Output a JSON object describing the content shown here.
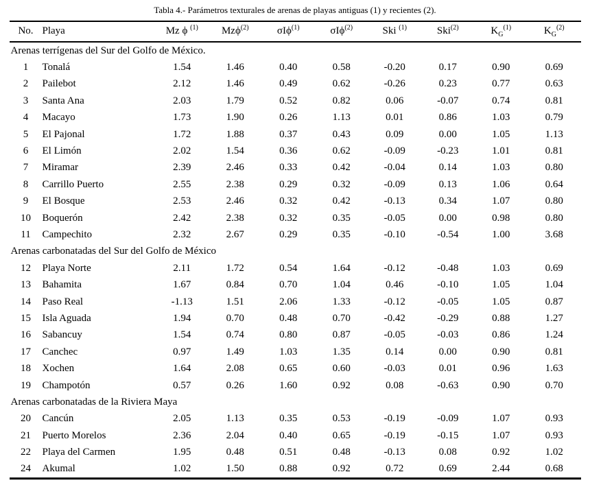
{
  "title": "Tabla 4.- Parámetros texturales de arenas de playas antiguas (1) y recientes (2).",
  "table": {
    "columns": [
      {
        "base": "No."
      },
      {
        "base": "Playa"
      },
      {
        "base": "Mz ϕ ",
        "sup": "(1)"
      },
      {
        "base": "Mzϕ",
        "sup": "(2)"
      },
      {
        "base": "σIϕ",
        "sup": "(1)"
      },
      {
        "base": "σIϕ",
        "sup": "(2)"
      },
      {
        "base": "Ski ",
        "sup": "(1)"
      },
      {
        "base": "Ski",
        "sup": "(2)"
      },
      {
        "base": "K",
        "sub": "G",
        "sup": "(1)"
      },
      {
        "base": "K",
        "sub": "G",
        "sup": "(2)"
      }
    ],
    "sections": [
      {
        "header": "Arenas terrígenas del Sur del Golfo de México.",
        "rows": [
          {
            "no": "1",
            "playa": "Tonalá",
            "values": [
              "1.54",
              "1.46",
              "0.40",
              "0.58",
              "-0.20",
              "0.17",
              "0.90",
              "0.69"
            ]
          },
          {
            "no": "2",
            "playa": "Pailebot",
            "values": [
              "2.12",
              "1.46",
              "0.49",
              "0.62",
              "-0.26",
              "0.23",
              "0.77",
              "0.63"
            ]
          },
          {
            "no": "3",
            "playa": "Santa Ana",
            "values": [
              "2.03",
              "1.79",
              "0.52",
              "0.82",
              "0.06",
              "-0.07",
              "0.74",
              "0.81"
            ]
          },
          {
            "no": "4",
            "playa": "Macayo",
            "values": [
              "1.73",
              "1.90",
              "0.26",
              "1.13",
              "0.01",
              "0.86",
              "1.03",
              "0.79"
            ]
          },
          {
            "no": "5",
            "playa": "El Pajonal",
            "values": [
              "1.72",
              "1.88",
              "0.37",
              "0.43",
              "0.09",
              "0.00",
              "1.05",
              "1.13"
            ]
          },
          {
            "no": "6",
            "playa": "El Limón",
            "values": [
              "2.02",
              "1.54",
              "0.36",
              "0.62",
              "-0.09",
              "-0.23",
              "1.01",
              "0.81"
            ]
          },
          {
            "no": "7",
            "playa": "Miramar",
            "values": [
              "2.39",
              "2.46",
              "0.33",
              "0.42",
              "-0.04",
              "0.14",
              "1.03",
              "0.80"
            ]
          },
          {
            "no": "8",
            "playa": "Carrillo Puerto",
            "values": [
              "2.55",
              "2.38",
              "0.29",
              "0.32",
              "-0.09",
              "0.13",
              "1.06",
              "0.64"
            ]
          },
          {
            "no": "9",
            "playa": "El Bosque",
            "values": [
              "2.53",
              "2.46",
              "0.32",
              "0.42",
              "-0.13",
              "0.34",
              "1.07",
              "0.80"
            ]
          },
          {
            "no": "10",
            "playa": "Boquerón",
            "values": [
              "2.42",
              "2.38",
              "0.32",
              "0.35",
              "-0.05",
              "0.00",
              "0.98",
              "0.80"
            ]
          },
          {
            "no": "11",
            "playa": "Campechito",
            "values": [
              "2.32",
              "2.67",
              "0.29",
              "0.35",
              "-0.10",
              "-0.54",
              "1.00",
              "3.68"
            ]
          }
        ]
      },
      {
        "header": "Arenas carbonatadas del Sur del Golfo de México",
        "rows": [
          {
            "no": "12",
            "playa": "Playa Norte",
            "values": [
              "2.11",
              "1.72",
              "0.54",
              "1.64",
              "-0.12",
              "-0.48",
              "1.03",
              "0.69"
            ]
          },
          {
            "no": "13",
            "playa": "Bahamita",
            "values": [
              "1.67",
              "0.84",
              "0.70",
              "1.04",
              "0.46",
              "-0.10",
              "1.05",
              "1.04"
            ]
          },
          {
            "no": "14",
            "playa": "Paso Real",
            "values": [
              "-1.13",
              "1.51",
              "2.06",
              "1.33",
              "-0.12",
              "-0.05",
              "1.05",
              "0.87"
            ]
          },
          {
            "no": "15",
            "playa": "Isla Aguada",
            "values": [
              "1.94",
              "0.70",
              "0.48",
              "0.70",
              "-0.42",
              "-0.29",
              "0.88",
              "1.27"
            ]
          },
          {
            "no": "16",
            "playa": "Sabancuy",
            "values": [
              "1.54",
              "0.74",
              "0.80",
              "0.87",
              "-0.05",
              "-0.03",
              "0.86",
              "1.24"
            ]
          },
          {
            "no": "17",
            "playa": "Canchec",
            "values": [
              "0.97",
              "1.49",
              "1.03",
              "1.35",
              "0.14",
              "0.00",
              "0.90",
              "0.81"
            ]
          },
          {
            "no": "18",
            "playa": "Xochen",
            "values": [
              "1.64",
              "2.08",
              "0.65",
              "0.60",
              "-0.03",
              "0.01",
              "0.96",
              "1.63"
            ]
          },
          {
            "no": "19",
            "playa": "Champotón",
            "values": [
              "0.57",
              "0.26",
              "1.60",
              "0.92",
              "0.08",
              "-0.63",
              "0.90",
              "0.70"
            ]
          }
        ]
      },
      {
        "header": "Arenas carbonatadas de la Riviera Maya",
        "rows": [
          {
            "no": "20",
            "playa": "Cancún",
            "values": [
              "2.05",
              "1.13",
              "0.35",
              "0.53",
              "-0.19",
              "-0.09",
              "1.07",
              "0.93"
            ]
          },
          {
            "no": "21",
            "playa": "Puerto Morelos",
            "values": [
              "2.36",
              "2.04",
              "0.40",
              "0.65",
              "-0.19",
              "-0.15",
              "1.07",
              "0.93"
            ]
          },
          {
            "no": "22",
            "playa": "Playa del Carmen",
            "values": [
              "1.95",
              "0.48",
              "0.51",
              "0.48",
              "-0.13",
              "0.08",
              "0.92",
              "1.02"
            ]
          },
          {
            "no": "24",
            "playa": "Akumal",
            "values": [
              "1.02",
              "1.50",
              "0.88",
              "0.92",
              "0.72",
              "0.69",
              "2.44",
              "0.68"
            ]
          }
        ]
      }
    ]
  }
}
